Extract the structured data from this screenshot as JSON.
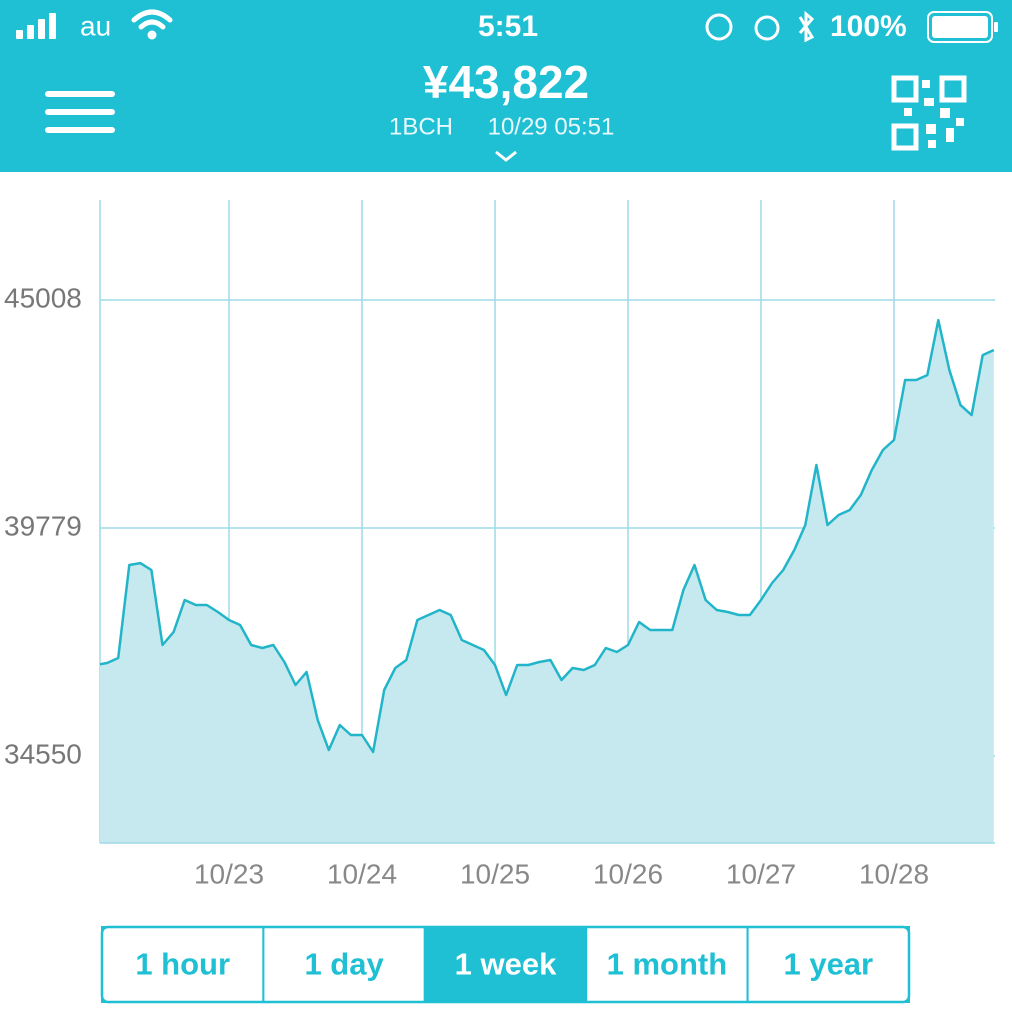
{
  "status": {
    "carrier": "au",
    "time": "5:51",
    "battery": "100%"
  },
  "header": {
    "price": "¥43,822",
    "unit": "1BCH",
    "timestamp": "10/29 05:51"
  },
  "chart_data": {
    "type": "area",
    "color": "#22b5c9",
    "fill": "#c6e8ef",
    "categories": [
      null,
      null,
      null,
      null,
      null,
      null,
      null,
      null,
      null,
      null,
      null,
      null,
      "10/23",
      null,
      null,
      null,
      null,
      null,
      null,
      null,
      null,
      null,
      null,
      null,
      "10/24",
      null,
      null,
      null,
      null,
      null,
      null,
      null,
      null,
      null,
      null,
      null,
      "10/25",
      null,
      null,
      null,
      null,
      null,
      null,
      null,
      null,
      null,
      null,
      null,
      "10/26",
      null,
      null,
      null,
      null,
      null,
      null,
      null,
      null,
      null,
      null,
      null,
      "10/27",
      null,
      null,
      null,
      null,
      null,
      null,
      null,
      null,
      null,
      null,
      null,
      "10/28",
      null,
      null,
      null,
      null,
      null,
      null,
      null,
      null,
      null
    ],
    "values": [
      36637,
      36683,
      36797,
      38930,
      38975,
      38815,
      37095,
      37393,
      38127,
      38012,
      38012,
      37852,
      37668,
      37554,
      37095,
      37026,
      37095,
      36705,
      36178,
      36476,
      35375,
      34688,
      35261,
      35032,
      35032,
      34642,
      36063,
      36568,
      36751,
      37668,
      37783,
      37898,
      37783,
      37210,
      37095,
      36981,
      36637,
      35949,
      36637,
      36637,
      36705,
      36751,
      36293,
      36568,
      36522,
      36637,
      37026,
      36935,
      37095,
      37623,
      37439,
      37439,
      37439,
      38356,
      38930,
      38127,
      37898,
      37852,
      37783,
      37783,
      38127,
      38517,
      38815,
      39274,
      39847,
      41223,
      39847,
      40076,
      40191,
      40535,
      41108,
      41567,
      41796,
      43172,
      43172,
      43286,
      44547,
      43401,
      42598,
      42369,
      43745,
      43860
    ],
    "ylim": [
      32555,
      47301
    ],
    "yticks": [
      34550,
      39779,
      45008
    ],
    "grid": true
  },
  "ranges": {
    "options": [
      "1 hour",
      "1 day",
      "1 week",
      "1 month",
      "1 year"
    ],
    "selected": 2
  }
}
